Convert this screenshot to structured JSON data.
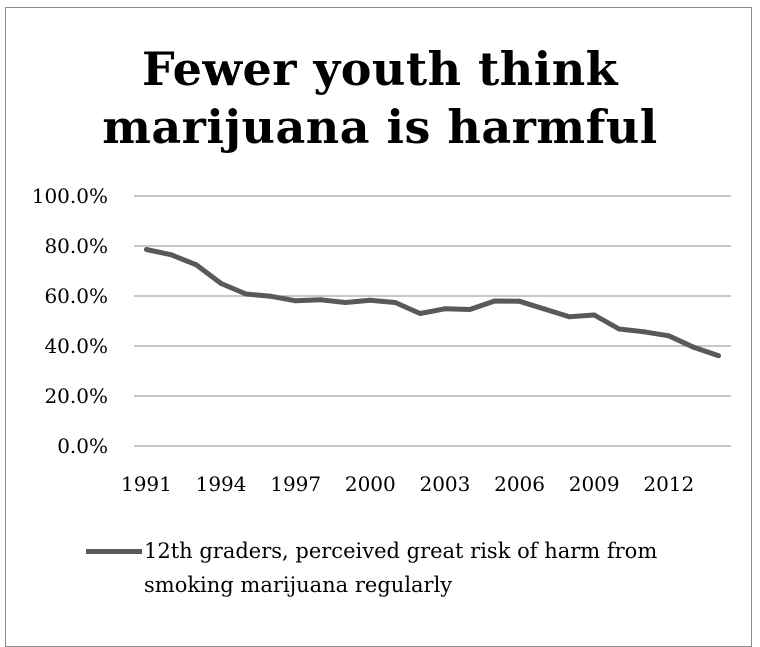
{
  "chart_data": {
    "type": "line",
    "title_lines": [
      "Fewer youth think",
      "marijuana is harmful"
    ],
    "xlabel": "",
    "ylabel": "",
    "ylim": [
      0,
      100
    ],
    "y_ticks": [
      "0.0%",
      "20.0%",
      "40.0%",
      "60.0%",
      "80.0%",
      "100.0%"
    ],
    "x_tick_labels": [
      "1991",
      "1994",
      "1997",
      "2000",
      "2003",
      "2006",
      "2009",
      "2012"
    ],
    "grid": true,
    "legend_position": "bottom",
    "series": [
      {
        "name": "12th graders, perceived great risk of harm from smoking marijuana regularly",
        "color": "#595959",
        "x": [
          1991,
          1992,
          1993,
          1994,
          1995,
          1996,
          1997,
          1998,
          1999,
          2000,
          2001,
          2002,
          2003,
          2004,
          2005,
          2006,
          2007,
          2008,
          2009,
          2010,
          2011,
          2012,
          2013,
          2014
        ],
        "values": [
          78.6,
          76.5,
          72.5,
          65.0,
          60.8,
          59.9,
          58.1,
          58.5,
          57.4,
          58.3,
          57.4,
          53.0,
          54.9,
          54.6,
          58.0,
          57.9,
          54.8,
          51.7,
          52.4,
          46.8,
          45.7,
          44.1,
          39.5,
          36.1
        ]
      }
    ]
  }
}
